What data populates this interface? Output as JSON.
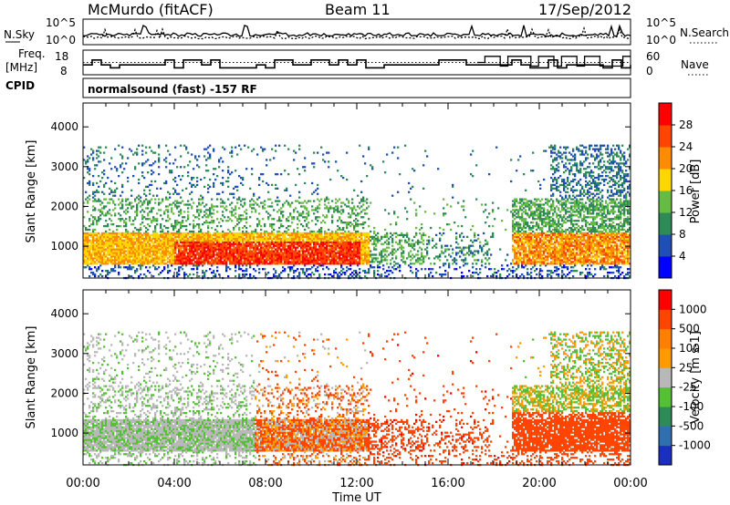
{
  "header": {
    "station": "McMurdo (fitACF)",
    "beam": "Beam 11",
    "date": "17/Sep/2012"
  },
  "noise_panel": {
    "left_label": "N.Sky",
    "right_label": "N.Search",
    "left_ticks": [
      "10^5",
      "10^0"
    ],
    "right_ticks": [
      "10^5",
      "10^0"
    ]
  },
  "freq_panel": {
    "left_label_1": "Freq.",
    "left_label_2": "[MHz]",
    "right_label": "Nave",
    "left_ticks": [
      "18",
      "8"
    ],
    "right_ticks": [
      "60",
      "0"
    ],
    "dotted_level_mhz": 13
  },
  "cpid": {
    "label": "CPID",
    "text": "normalsound (fast) -157 RF"
  },
  "power_colorbar": {
    "label": "Power [dB]",
    "ticks": [
      "28",
      "24",
      "20",
      "16",
      "12",
      "8",
      "4"
    ],
    "colors": [
      "#0000ff",
      "#1f4fb4",
      "#2e8b57",
      "#66bb44",
      "#ffd700",
      "#ff8c00",
      "#ff4500",
      "#ff0000"
    ]
  },
  "velocity_colorbar": {
    "label": "Velocity [m s-1]",
    "ticks": [
      "1000",
      "500",
      "100",
      "25",
      "-25",
      "-100",
      "-500",
      "-1000"
    ],
    "colors": [
      "#1a2fbf",
      "#2f6fae",
      "#2e8b57",
      "#55c035",
      "#b8b8b8",
      "#ff9a00",
      "#ff7f00",
      "#ff4500",
      "#ff0000"
    ]
  },
  "chart_data": [
    {
      "type": "heatmap",
      "panel": "power",
      "ylabel": "Slant Range [km]",
      "yticks": [
        1000,
        2000,
        3000,
        4000
      ],
      "ylim": [
        200,
        4600
      ],
      "xlim": [
        0,
        24
      ],
      "xticks": [
        "00:00",
        "04:00",
        "08:00",
        "12:00",
        "16:00",
        "20:00",
        "00:00"
      ],
      "clabel": "Power [dB]",
      "clim": [
        0,
        30
      ]
    },
    {
      "type": "heatmap",
      "panel": "velocity",
      "ylabel": "Slant Range [km]",
      "yticks": [
        1000,
        2000,
        3000,
        4000
      ],
      "ylim": [
        200,
        4600
      ],
      "xlim": [
        0,
        24
      ],
      "xticks": [
        "00:00",
        "04:00",
        "08:00",
        "12:00",
        "16:00",
        "20:00",
        "00:00"
      ],
      "xlabel": "Time UT",
      "clabel": "Velocity [m s-1]",
      "clim": [
        -1000,
        1000
      ]
    }
  ]
}
